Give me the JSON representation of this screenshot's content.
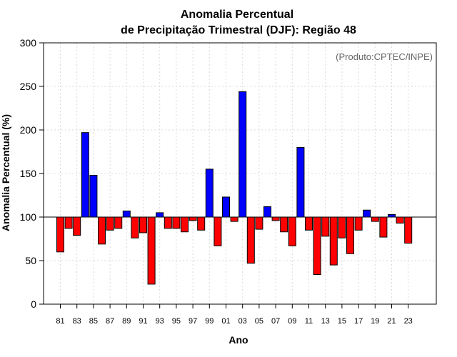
{
  "chart_data": {
    "type": "bar",
    "title": "Anomalia Percentual",
    "subtitle": "de Precipitação Trimestral (DJF): Região 48",
    "xlabel": "Ano",
    "ylabel": "Anomalia Percentual (%)",
    "credit": "(Produto:CPTEC/INPE)",
    "ylim": [
      0,
      300
    ],
    "yticks": [
      0,
      50,
      100,
      150,
      200,
      250,
      300
    ],
    "baseline": 100,
    "colors": {
      "above": "#0000ff",
      "below": "#ff0000",
      "baseline": "#000000",
      "grid": "#d9d9d9"
    },
    "xtick_labels": [
      "81",
      "83",
      "85",
      "87",
      "89",
      "91",
      "93",
      "95",
      "97",
      "99",
      "01",
      "03",
      "05",
      "07",
      "09",
      "11",
      "13",
      "15",
      "17",
      "19",
      "21",
      "23"
    ],
    "categories": [
      "81",
      "82",
      "83",
      "84",
      "85",
      "86",
      "87",
      "88",
      "89",
      "90",
      "91",
      "92",
      "93",
      "94",
      "95",
      "96",
      "97",
      "98",
      "99",
      "00",
      "01",
      "02",
      "03",
      "04",
      "05",
      "06",
      "07",
      "08",
      "09",
      "10",
      "11",
      "12",
      "13",
      "14",
      "15",
      "16",
      "17",
      "18",
      "19",
      "20",
      "21",
      "22",
      "23"
    ],
    "values": [
      60,
      87,
      79,
      197,
      148,
      69,
      85,
      87,
      107,
      76,
      82,
      23,
      105,
      87,
      87,
      83,
      96,
      85,
      155,
      67,
      123,
      95,
      244,
      47,
      86,
      112,
      96,
      83,
      67,
      180,
      85,
      34,
      78,
      45,
      76,
      58,
      85,
      108,
      95,
      77,
      103,
      93,
      70
    ]
  }
}
